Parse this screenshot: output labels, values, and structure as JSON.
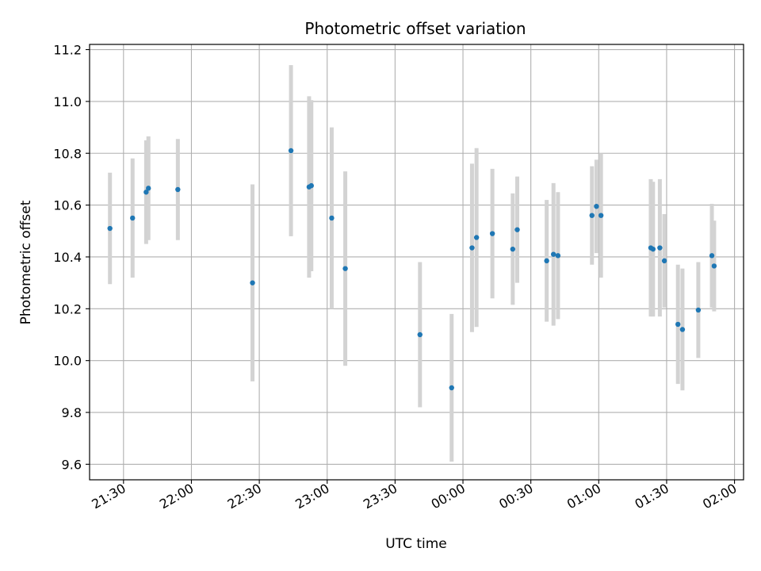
{
  "chart_data": {
    "type": "scatter",
    "title": "Photometric offset variation",
    "xlabel": "UTC time",
    "ylabel": "Photometric offset",
    "grid": true,
    "x_unit": "UTC clock time (hh:mm)",
    "xlim": [
      "21:15",
      "02:04"
    ],
    "ylim": [
      9.54,
      11.22
    ],
    "x_ticks": [
      "21:30",
      "22:00",
      "22:30",
      "23:00",
      "23:30",
      "00:00",
      "00:30",
      "01:00",
      "01:30",
      "02:00"
    ],
    "y_ticks": [
      9.6,
      9.8,
      10.0,
      10.2,
      10.4,
      10.6,
      10.8,
      11.0,
      11.2
    ],
    "y_tick_labels": [
      "9.6",
      "9.8",
      "10.0",
      "10.2",
      "10.4",
      "10.6",
      "10.8",
      "11.0",
      "11.2"
    ],
    "colors": {
      "point": "#1f77b4",
      "errorbar": "#d3d3d3",
      "grid": "#b0b0b0"
    },
    "series": [
      {
        "points": [
          {
            "x": "21:24",
            "y": 10.51,
            "err": 0.215
          },
          {
            "x": "21:34",
            "y": 10.55,
            "err": 0.23
          },
          {
            "x": "21:40",
            "y": 10.65,
            "err": 0.2
          },
          {
            "x": "21:41",
            "y": 10.665,
            "err": 0.2
          },
          {
            "x": "21:54",
            "y": 10.66,
            "err": 0.195
          },
          {
            "x": "22:27",
            "y": 10.3,
            "err": 0.38
          },
          {
            "x": "22:44",
            "y": 10.81,
            "err": 0.33
          },
          {
            "x": "22:52",
            "y": 10.67,
            "err": 0.35
          },
          {
            "x": "22:53",
            "y": 10.675,
            "err": 0.33
          },
          {
            "x": "23:02",
            "y": 10.55,
            "err": 0.35
          },
          {
            "x": "23:08",
            "y": 10.355,
            "err": 0.375
          },
          {
            "x": "23:41",
            "y": 10.1,
            "err": 0.28
          },
          {
            "x": "23:55",
            "y": 9.895,
            "err": 0.285
          },
          {
            "x": "00:04",
            "y": 10.435,
            "err": 0.325
          },
          {
            "x": "00:06",
            "y": 10.475,
            "err": 0.345
          },
          {
            "x": "00:13",
            "y": 10.49,
            "err": 0.25
          },
          {
            "x": "00:22",
            "y": 10.43,
            "err": 0.215
          },
          {
            "x": "00:24",
            "y": 10.505,
            "err": 0.205
          },
          {
            "x": "00:37",
            "y": 10.385,
            "err": 0.235
          },
          {
            "x": "00:40",
            "y": 10.41,
            "err": 0.275
          },
          {
            "x": "00:42",
            "y": 10.405,
            "err": 0.245
          },
          {
            "x": "00:57",
            "y": 10.56,
            "err": 0.19
          },
          {
            "x": "00:59",
            "y": 10.595,
            "err": 0.18
          },
          {
            "x": "01:01",
            "y": 10.56,
            "err": 0.24
          },
          {
            "x": "01:23",
            "y": 10.435,
            "err": 0.265
          },
          {
            "x": "01:24",
            "y": 10.43,
            "err": 0.26
          },
          {
            "x": "01:27",
            "y": 10.435,
            "err": 0.265
          },
          {
            "x": "01:29",
            "y": 10.385,
            "err": 0.18
          },
          {
            "x": "01:35",
            "y": 10.14,
            "err": 0.23
          },
          {
            "x": "01:37",
            "y": 10.12,
            "err": 0.235
          },
          {
            "x": "01:44",
            "y": 10.195,
            "err": 0.185
          },
          {
            "x": "01:50",
            "y": 10.405,
            "err": 0.2
          },
          {
            "x": "01:51",
            "y": 10.365,
            "err": 0.175
          }
        ]
      }
    ]
  }
}
